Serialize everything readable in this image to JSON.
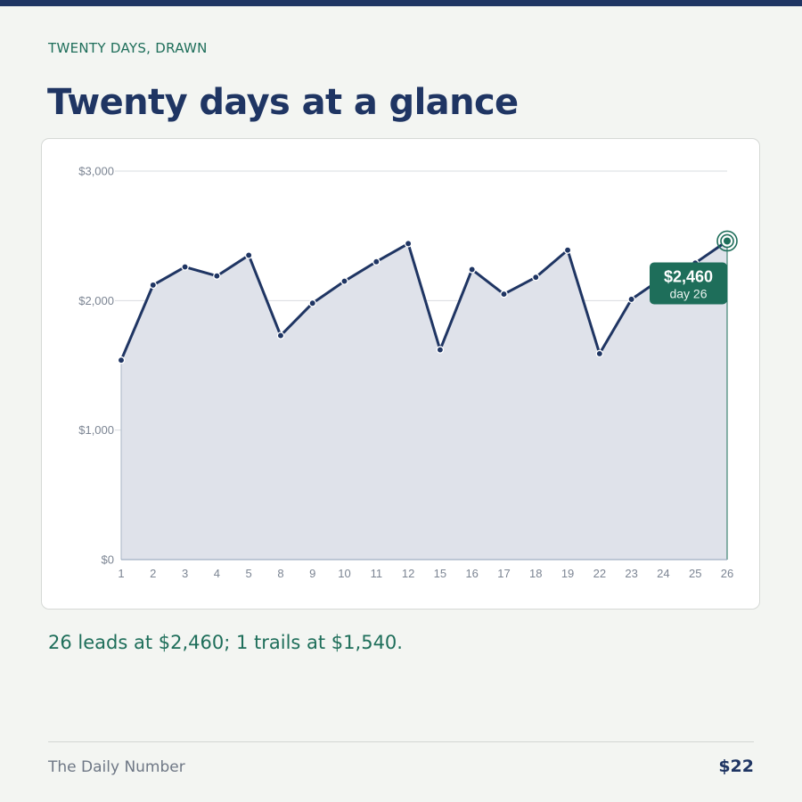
{
  "header": {
    "kicker": "TWENTY DAYS, DRAWN",
    "title": "Twenty days at a glance"
  },
  "chart_data": {
    "type": "area",
    "title": "Twenty days at a glance",
    "xlabel": "",
    "ylabel": "",
    "categories": [
      "1",
      "2",
      "3",
      "4",
      "5",
      "8",
      "9",
      "10",
      "11",
      "12",
      "15",
      "16",
      "17",
      "18",
      "19",
      "22",
      "23",
      "24",
      "25",
      "26"
    ],
    "series": [
      {
        "values": [
          1540,
          2120,
          2260,
          2190,
          2350,
          1730,
          1980,
          2150,
          2300,
          2440,
          1620,
          2240,
          2050,
          2180,
          2390,
          1590,
          2010,
          2180,
          2290,
          2460
        ]
      }
    ],
    "yticks": [
      0,
      1000,
      2000,
      3000
    ],
    "ytick_labels": [
      "$0",
      "$1,000",
      "$2,000",
      "$3,000"
    ],
    "ylim": [
      0,
      3000
    ],
    "grid": true,
    "legend": "none",
    "colors": {
      "line": "#1f3563",
      "fill": "#dfe2ea",
      "accent": "#1e6e5a",
      "grid": "#d9dce0",
      "tick": "#7c8593"
    },
    "callout": {
      "value_label": "$2,460",
      "sub_label": "day 26"
    }
  },
  "caption": "26 leads at $2,460; 1 trails at $1,540.",
  "footer": {
    "brand": "The Daily Number",
    "price": "$22"
  }
}
